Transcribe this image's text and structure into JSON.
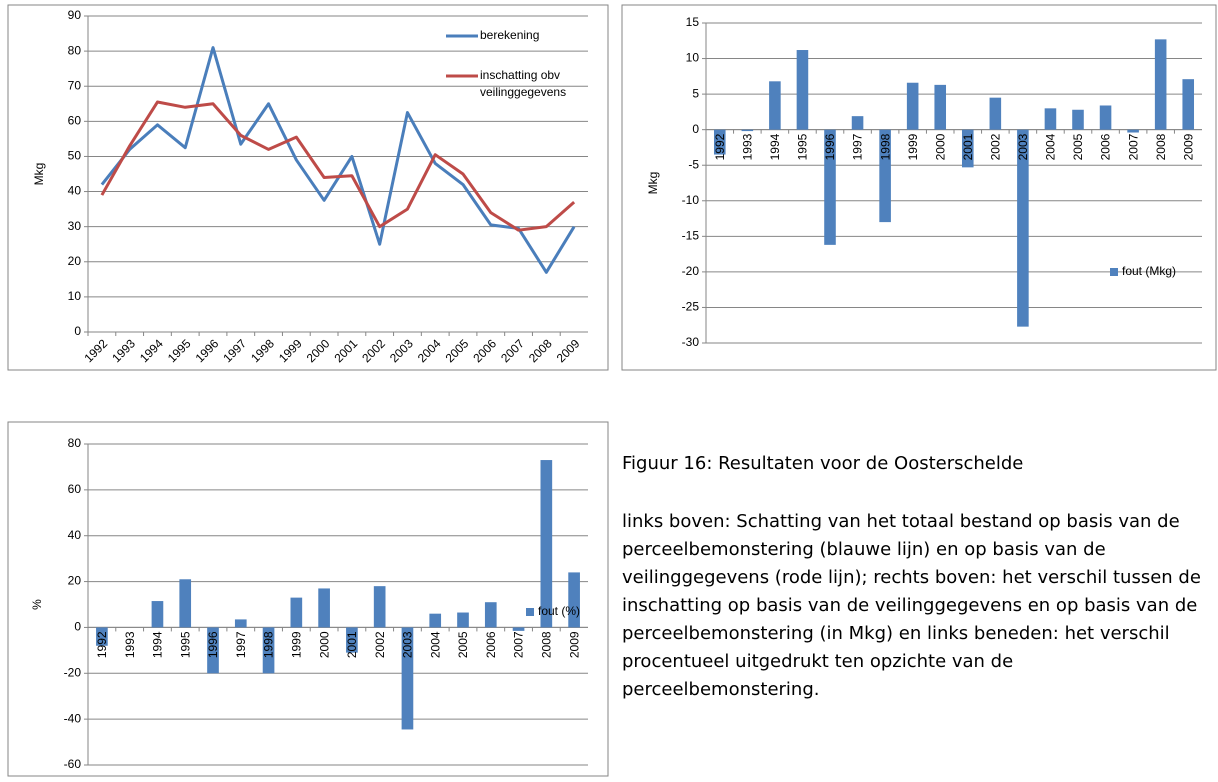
{
  "chart_data": [
    {
      "type": "line",
      "y_label": "Mkg",
      "categories": [
        "1992",
        "1993",
        "1994",
        "1995",
        "1996",
        "1997",
        "1998",
        "1999",
        "2000",
        "2001",
        "2002",
        "2003",
        "2004",
        "2005",
        "2006",
        "2007",
        "2008",
        "2009"
      ],
      "series": [
        {
          "name": "berekening",
          "color": "#4a7ebb",
          "values": [
            42,
            52,
            59,
            52.5,
            81,
            53.5,
            65,
            49,
            37.5,
            50,
            25,
            62.5,
            48,
            42,
            30.5,
            29.5,
            17,
            30
          ]
        },
        {
          "name": "inschatting obv veilinggegevens",
          "color": "#be4b48",
          "values": [
            39,
            53,
            65.5,
            64,
            65,
            56,
            52,
            55.5,
            44,
            44.5,
            30,
            35,
            50.5,
            45,
            34,
            29,
            30,
            37
          ]
        }
      ],
      "ylim": [
        0,
        90
      ],
      "yticks": [
        0,
        10,
        20,
        30,
        40,
        50,
        60,
        70,
        80,
        90
      ],
      "grid": true
    },
    {
      "type": "bar",
      "y_label": "Mkg",
      "categories": [
        "1992",
        "1993",
        "1994",
        "1995",
        "1996",
        "1997",
        "1998",
        "1999",
        "2000",
        "2001",
        "2002",
        "2003",
        "2004",
        "2005",
        "2006",
        "2007",
        "2008",
        "2009"
      ],
      "series": [
        {
          "name": "fout (Mkg)",
          "color": "#4f81bd",
          "values": [
            -3.5,
            -0.2,
            6.8,
            11.2,
            -16.2,
            1.9,
            -13,
            6.6,
            6.3,
            -5.3,
            4.5,
            -27.7,
            3,
            2.8,
            3.4,
            -0.4,
            12.7,
            7.1
          ]
        }
      ],
      "ylim": [
        -30,
        15
      ],
      "yticks": [
        -30,
        -25,
        -20,
        -15,
        -10,
        -5,
        0,
        5,
        10,
        15
      ],
      "grid": true
    },
    {
      "type": "bar",
      "y_label": "%",
      "categories": [
        "1992",
        "1993",
        "1994",
        "1995",
        "1996",
        "1997",
        "1998",
        "1999",
        "2000",
        "2001",
        "2002",
        "2003",
        "2004",
        "2005",
        "2006",
        "2007",
        "2008",
        "2009"
      ],
      "series": [
        {
          "name": "fout (%)",
          "color": "#4f81bd",
          "values": [
            -8,
            0,
            11.5,
            21,
            -20,
            3.5,
            -20,
            13,
            17,
            -11,
            18,
            -44.5,
            6,
            6.5,
            11,
            -1.5,
            73,
            24
          ]
        }
      ],
      "ylim": [
        -60,
        80
      ],
      "yticks": [
        -60,
        -40,
        -20,
        0,
        20,
        40,
        60,
        80
      ],
      "grid": true
    }
  ],
  "caption": {
    "title": "Figuur 16: Resultaten voor de Oosterschelde",
    "text": "links boven: Schatting van het totaal bestand op basis van de perceelbemonstering (blauwe lijn) en op basis van de veilinggegevens (rode lijn); rechts boven: het verschil tussen de inschatting op basis van de veilinggegevens en op basis van de perceelbemonstering (in Mkg) en links beneden: het verschil procentueel uitgedrukt ten opzichte van de perceelbemonstering."
  }
}
